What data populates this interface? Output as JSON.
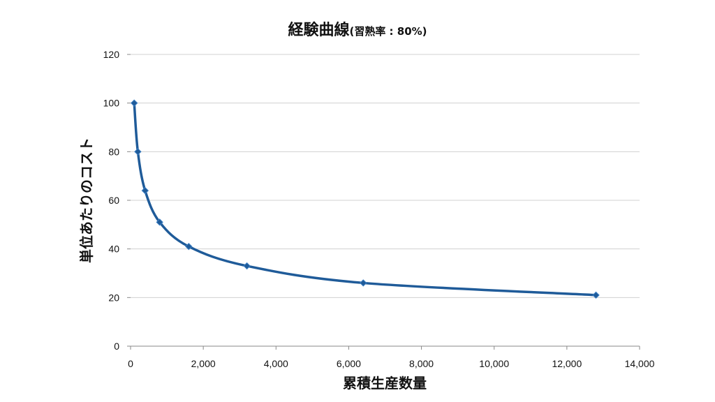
{
  "chart_data": {
    "type": "scatter",
    "title": "経験曲線",
    "subtitle": "(習熟率 : 80%)",
    "xlabel": "累積生産数量",
    "ylabel": "単位あたりのコスト",
    "xlim": [
      0,
      14000
    ],
    "ylim": [
      0,
      120
    ],
    "x_ticks": [
      "0",
      "2,000",
      "4,000",
      "6,000",
      "8,000",
      "10,000",
      "12,000",
      "14,000"
    ],
    "y_ticks": [
      "0",
      "20",
      "40",
      "60",
      "80",
      "100",
      "120"
    ],
    "x_tick_values": [
      0,
      2000,
      4000,
      6000,
      8000,
      10000,
      12000,
      14000
    ],
    "y_tick_values": [
      0,
      20,
      40,
      60,
      80,
      100,
      120
    ],
    "grid": "horizontal",
    "smooth": true,
    "color": "#1f5b99",
    "series": [
      {
        "x": [
          100,
          200,
          400,
          800,
          1600,
          3200,
          6400,
          12800
        ],
        "y": [
          100,
          80,
          64,
          51,
          41,
          33,
          26,
          21
        ]
      }
    ]
  }
}
